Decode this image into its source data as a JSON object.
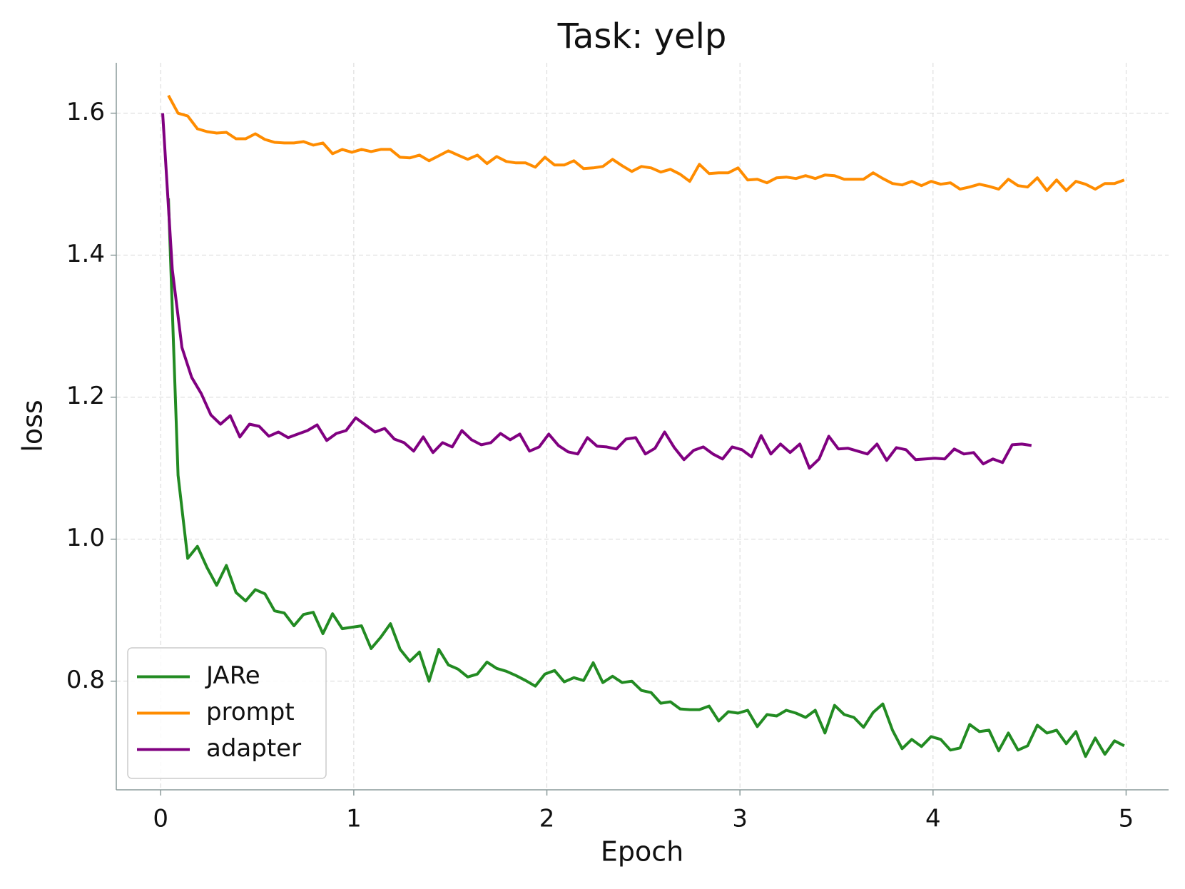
{
  "chart_data": {
    "type": "line",
    "title": "Task: yelp",
    "xlabel": "Epoch",
    "ylabel": "loss",
    "xlim": [
      -0.23,
      5.22
    ],
    "ylim": [
      0.647,
      1.671
    ],
    "xticks": [
      0,
      1,
      2,
      3,
      4,
      5
    ],
    "yticks": [
      0.8,
      {
        "value": 1.0,
        "label": "1.0"
      },
      1.2,
      1.4,
      1.6
    ],
    "grid": true,
    "legend": "lower left",
    "series": [
      {
        "name": "JARe",
        "color": "#228b22",
        "x": [
          0.04,
          0.09,
          0.14,
          0.19,
          0.24,
          0.29,
          0.34,
          0.39,
          0.44,
          0.49,
          0.54,
          0.59,
          0.64,
          0.69,
          0.74,
          0.79,
          0.84,
          0.89,
          0.94,
          0.99,
          1.04,
          1.09,
          1.14,
          1.19,
          1.24,
          1.29,
          1.34,
          1.39,
          1.44,
          1.49,
          1.54,
          1.59,
          1.64,
          1.69,
          1.74,
          1.79,
          1.84,
          1.89,
          1.94,
          1.99,
          2.04,
          2.09,
          2.14,
          2.19,
          2.24,
          2.29,
          2.34,
          2.39,
          2.44,
          2.49,
          2.54,
          2.59,
          2.64,
          2.69,
          2.74,
          2.79,
          2.84,
          2.89,
          2.94,
          2.99,
          3.04,
          3.09,
          3.14,
          3.19,
          3.24,
          3.29,
          3.34,
          3.39,
          3.44,
          3.49,
          3.54,
          3.59,
          3.64,
          3.69,
          3.74,
          3.79,
          3.84,
          3.89,
          3.94,
          3.99,
          4.04,
          4.09,
          4.14,
          4.19,
          4.24,
          4.29,
          4.34,
          4.39,
          4.44,
          4.49,
          4.54,
          4.59,
          4.64,
          4.69,
          4.74,
          4.79,
          4.84,
          4.89,
          4.94,
          4.99
        ],
        "values": [
          1.48,
          1.09,
          0.973,
          0.99,
          0.96,
          0.935,
          0.963,
          0.925,
          0.913,
          0.929,
          0.923,
          0.899,
          0.896,
          0.878,
          0.894,
          0.897,
          0.867,
          0.895,
          0.874,
          0.876,
          0.878,
          0.846,
          0.862,
          0.881,
          0.845,
          0.828,
          0.841,
          0.8,
          0.845,
          0.823,
          0.817,
          0.806,
          0.81,
          0.827,
          0.818,
          0.814,
          0.808,
          0.801,
          0.793,
          0.81,
          0.815,
          0.799,
          0.805,
          0.801,
          0.826,
          0.798,
          0.807,
          0.798,
          0.8,
          0.787,
          0.784,
          0.769,
          0.771,
          0.761,
          0.76,
          0.76,
          0.765,
          0.744,
          0.757,
          0.755,
          0.759,
          0.736,
          0.753,
          0.751,
          0.759,
          0.755,
          0.749,
          0.759,
          0.727,
          0.766,
          0.753,
          0.749,
          0.735,
          0.756,
          0.768,
          0.731,
          0.705,
          0.718,
          0.708,
          0.722,
          0.718,
          0.703,
          0.706,
          0.739,
          0.729,
          0.731,
          0.702,
          0.727,
          0.703,
          0.709,
          0.738,
          0.727,
          0.731,
          0.712,
          0.729,
          0.694,
          0.72,
          0.697,
          0.716,
          0.709
        ]
      },
      {
        "name": "prompt",
        "color": "#ff8c00",
        "x": [
          0.04,
          0.09,
          0.14,
          0.19,
          0.24,
          0.29,
          0.34,
          0.39,
          0.44,
          0.49,
          0.54,
          0.59,
          0.64,
          0.69,
          0.74,
          0.79,
          0.84,
          0.89,
          0.94,
          0.99,
          1.04,
          1.09,
          1.14,
          1.19,
          1.24,
          1.29,
          1.34,
          1.39,
          1.44,
          1.49,
          1.54,
          1.59,
          1.64,
          1.69,
          1.74,
          1.79,
          1.84,
          1.89,
          1.94,
          1.99,
          2.04,
          2.09,
          2.14,
          2.19,
          2.24,
          2.29,
          2.34,
          2.39,
          2.44,
          2.49,
          2.54,
          2.59,
          2.64,
          2.69,
          2.74,
          2.79,
          2.84,
          2.89,
          2.94,
          2.99,
          3.04,
          3.09,
          3.14,
          3.19,
          3.24,
          3.29,
          3.34,
          3.39,
          3.44,
          3.49,
          3.54,
          3.59,
          3.64,
          3.69,
          3.74,
          3.79,
          3.84,
          3.89,
          3.94,
          3.99,
          4.04,
          4.09,
          4.14,
          4.19,
          4.24,
          4.29,
          4.34,
          4.39,
          4.44,
          4.49,
          4.54,
          4.59,
          4.64,
          4.69,
          4.74,
          4.79,
          4.84,
          4.89,
          4.94,
          4.99
        ],
        "values": [
          1.625,
          1.6,
          1.596,
          1.578,
          1.574,
          1.572,
          1.573,
          1.564,
          1.564,
          1.571,
          1.563,
          1.559,
          1.558,
          1.558,
          1.56,
          1.555,
          1.558,
          1.543,
          1.549,
          1.545,
          1.549,
          1.546,
          1.549,
          1.549,
          1.538,
          1.537,
          1.541,
          1.533,
          1.54,
          1.547,
          1.541,
          1.535,
          1.541,
          1.529,
          1.539,
          1.532,
          1.53,
          1.53,
          1.524,
          1.538,
          1.527,
          1.527,
          1.533,
          1.522,
          1.523,
          1.525,
          1.535,
          1.526,
          1.518,
          1.525,
          1.523,
          1.517,
          1.521,
          1.514,
          1.504,
          1.528,
          1.515,
          1.516,
          1.516,
          1.523,
          1.506,
          1.507,
          1.502,
          1.509,
          1.51,
          1.508,
          1.512,
          1.508,
          1.513,
          1.512,
          1.507,
          1.507,
          1.507,
          1.516,
          1.508,
          1.501,
          1.499,
          1.504,
          1.498,
          1.504,
          1.5,
          1.502,
          1.493,
          1.496,
          1.5,
          1.497,
          1.493,
          1.507,
          1.498,
          1.496,
          1.509,
          1.491,
          1.506,
          1.491,
          1.504,
          1.5,
          1.493,
          1.501,
          1.501,
          1.506
        ]
      },
      {
        "name": "adapter",
        "color": "#800080",
        "x": [
          0.01,
          0.06,
          0.11,
          0.16,
          0.21,
          0.26,
          0.31,
          0.36,
          0.41,
          0.46,
          0.51,
          0.56,
          0.61,
          0.66,
          0.71,
          0.76,
          0.81,
          0.86,
          0.91,
          0.96,
          1.01,
          1.06,
          1.11,
          1.16,
          1.21,
          1.26,
          1.31,
          1.36,
          1.41,
          1.46,
          1.51,
          1.56,
          1.61,
          1.66,
          1.71,
          1.76,
          1.81,
          1.86,
          1.91,
          1.96,
          2.01,
          2.06,
          2.11,
          2.16,
          2.21,
          2.26,
          2.31,
          2.36,
          2.41,
          2.46,
          2.51,
          2.56,
          2.61,
          2.66,
          2.71,
          2.76,
          2.81,
          2.86,
          2.91,
          2.96,
          3.01,
          3.06,
          3.11,
          3.16,
          3.21,
          3.26,
          3.31,
          3.36,
          3.41,
          3.46,
          3.51,
          3.56,
          3.61,
          3.66,
          3.71,
          3.76,
          3.81,
          3.86,
          3.91,
          3.96,
          4.01,
          4.06,
          4.11,
          4.16,
          4.21,
          4.26,
          4.31,
          4.36,
          4.41,
          4.46,
          4.51
        ],
        "values": [
          1.6,
          1.38,
          1.27,
          1.228,
          1.205,
          1.175,
          1.162,
          1.174,
          1.144,
          1.162,
          1.159,
          1.145,
          1.151,
          1.143,
          1.148,
          1.153,
          1.161,
          1.139,
          1.149,
          1.153,
          1.171,
          1.161,
          1.151,
          1.156,
          1.141,
          1.136,
          1.124,
          1.144,
          1.122,
          1.136,
          1.13,
          1.153,
          1.14,
          1.133,
          1.136,
          1.149,
          1.14,
          1.148,
          1.124,
          1.13,
          1.148,
          1.132,
          1.123,
          1.12,
          1.143,
          1.131,
          1.13,
          1.127,
          1.141,
          1.143,
          1.12,
          1.128,
          1.151,
          1.129,
          1.112,
          1.125,
          1.13,
          1.12,
          1.113,
          1.13,
          1.126,
          1.116,
          1.146,
          1.12,
          1.134,
          1.122,
          1.134,
          1.1,
          1.113,
          1.145,
          1.127,
          1.128,
          1.124,
          1.12,
          1.134,
          1.111,
          1.129,
          1.126,
          1.112,
          1.113,
          1.114,
          1.113,
          1.127,
          1.12,
          1.122,
          1.106,
          1.113,
          1.108,
          1.133,
          1.134,
          1.132
        ]
      }
    ]
  }
}
